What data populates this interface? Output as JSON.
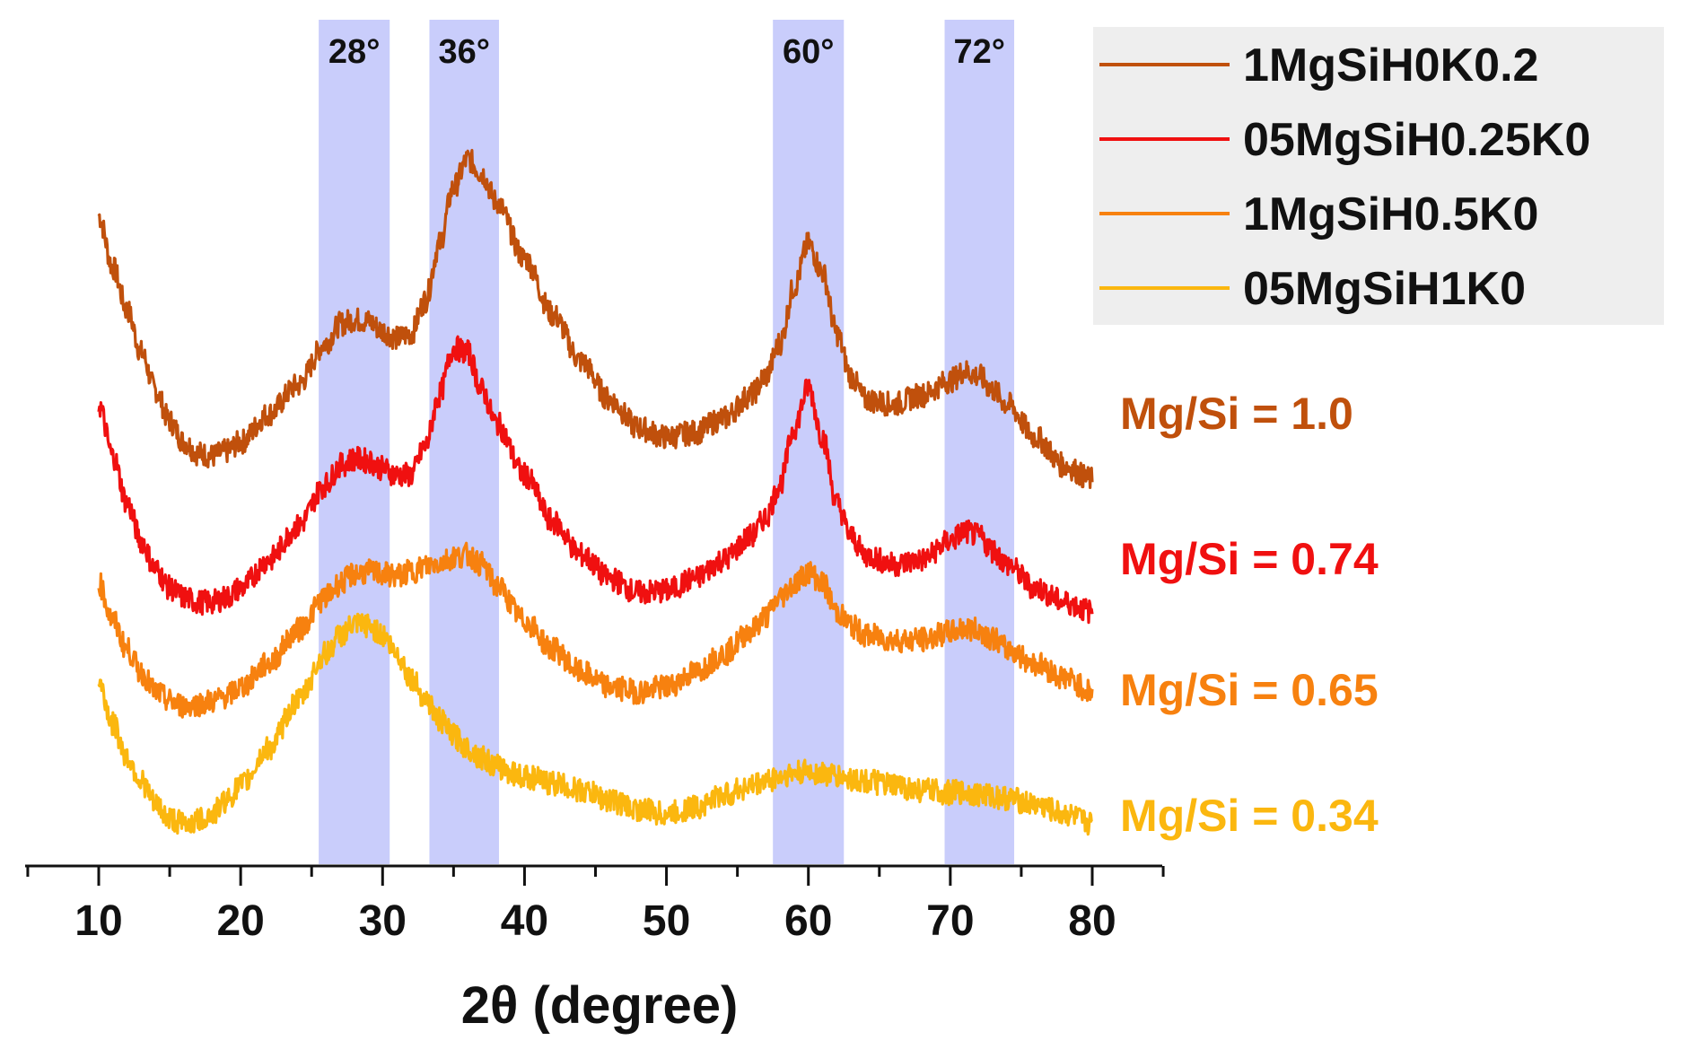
{
  "chart_data": {
    "type": "line",
    "title": "",
    "xlabel": "2θ (degree)",
    "ylabel": "",
    "xlim": [
      5,
      85
    ],
    "ylim": [
      0,
      9
    ],
    "x_ticks": [
      10,
      20,
      30,
      40,
      50,
      60,
      70,
      80
    ],
    "x_tick_labels": [
      "10",
      "20",
      "30",
      "40",
      "50",
      "60",
      "70",
      "80"
    ],
    "grid": false,
    "legend_position": "top-right",
    "highlight_bands": [
      {
        "label": "28°",
        "range": [
          25.5,
          30.5
        ],
        "color": "#c9cdfb"
      },
      {
        "label": "36°",
        "range": [
          33.3,
          38.2
        ],
        "color": "#c9cdfb"
      },
      {
        "label": "60°",
        "range": [
          57.5,
          62.5
        ],
        "color": "#c9cdfb"
      },
      {
        "label": "72°",
        "range": [
          69.6,
          74.5
        ],
        "color": "#c9cdfb"
      }
    ],
    "series": [
      {
        "name": "1MgSiH0K0.2",
        "annotation": "Mg/Si = 1.0",
        "color": "#c0500c",
        "x": [
          10,
          11,
          12,
          13,
          14,
          15,
          16,
          17,
          18,
          19,
          20,
          22,
          24,
          26,
          27,
          28,
          29,
          30,
          31,
          32,
          33,
          34,
          35,
          36,
          37,
          38,
          40,
          42,
          44,
          46,
          48,
          50,
          52,
          54,
          56,
          57,
          58,
          59,
          60,
          61,
          62,
          63,
          64,
          66,
          68,
          70,
          71,
          72,
          73,
          74,
          76,
          78,
          80
        ],
        "y": [
          6.9,
          6.35,
          5.9,
          5.45,
          5.05,
          4.72,
          4.5,
          4.38,
          4.35,
          4.4,
          4.5,
          4.8,
          5.1,
          5.55,
          5.75,
          5.8,
          5.78,
          5.68,
          5.6,
          5.65,
          6.0,
          6.6,
          7.2,
          7.5,
          7.35,
          7.05,
          6.45,
          5.85,
          5.35,
          4.95,
          4.65,
          4.55,
          4.6,
          4.75,
          5.0,
          5.2,
          5.55,
          6.15,
          6.6,
          6.3,
          5.65,
          5.2,
          4.95,
          4.9,
          5.0,
          5.15,
          5.25,
          5.2,
          5.05,
          4.9,
          4.55,
          4.25,
          4.1
        ]
      },
      {
        "name": "05MgSiH0.25K0",
        "annotation": "Mg/Si = 0.74",
        "color": "#f01010",
        "x": [
          10,
          11,
          12,
          13,
          14,
          15,
          16,
          17,
          18,
          19,
          20,
          22,
          24,
          26,
          27,
          28,
          29,
          30,
          31,
          32,
          33,
          34,
          35,
          36,
          37,
          38,
          40,
          42,
          44,
          46,
          48,
          50,
          52,
          54,
          56,
          57,
          58,
          59,
          60,
          61,
          62,
          63,
          64,
          66,
          68,
          70,
          71,
          72,
          73,
          74,
          76,
          78,
          80
        ],
        "y": [
          4.9,
          4.35,
          3.85,
          3.45,
          3.15,
          2.95,
          2.85,
          2.8,
          2.8,
          2.85,
          2.95,
          3.25,
          3.6,
          4.05,
          4.25,
          4.32,
          4.3,
          4.22,
          4.15,
          4.15,
          4.45,
          5.0,
          5.5,
          5.45,
          5.05,
          4.7,
          4.15,
          3.65,
          3.3,
          3.05,
          2.9,
          2.92,
          3.05,
          3.25,
          3.5,
          3.7,
          4.05,
          4.65,
          5.08,
          4.55,
          3.85,
          3.5,
          3.3,
          3.2,
          3.25,
          3.45,
          3.55,
          3.5,
          3.35,
          3.2,
          2.95,
          2.8,
          2.7
        ]
      },
      {
        "name": "1MgSiH0.5K0",
        "annotation": "Mg/Si = 0.65",
        "color": "#f7810f",
        "x": [
          10,
          11,
          12,
          13,
          14,
          15,
          16,
          17,
          18,
          19,
          20,
          22,
          24,
          26,
          27,
          28,
          29,
          30,
          31,
          32,
          33,
          34,
          35,
          36,
          37,
          38,
          40,
          42,
          44,
          46,
          48,
          50,
          52,
          54,
          56,
          57,
          58,
          59,
          60,
          61,
          62,
          63,
          64,
          66,
          68,
          70,
          71,
          72,
          73,
          74,
          76,
          78,
          80
        ],
        "y": [
          3.0,
          2.6,
          2.3,
          2.05,
          1.85,
          1.75,
          1.7,
          1.72,
          1.75,
          1.8,
          1.9,
          2.15,
          2.5,
          2.85,
          3.0,
          3.1,
          3.12,
          3.1,
          3.08,
          3.12,
          3.18,
          3.22,
          3.28,
          3.3,
          3.2,
          2.98,
          2.6,
          2.3,
          2.05,
          1.9,
          1.85,
          1.9,
          2.05,
          2.25,
          2.5,
          2.65,
          2.85,
          3.0,
          3.12,
          3.0,
          2.7,
          2.55,
          2.45,
          2.4,
          2.4,
          2.48,
          2.52,
          2.5,
          2.42,
          2.3,
          2.15,
          2.0,
          1.85
        ]
      },
      {
        "name": "05MgSiH1K0",
        "annotation": "Mg/Si = 0.34",
        "color": "#fbb70f",
        "x": [
          10,
          11,
          12,
          13,
          14,
          15,
          16,
          17,
          18,
          19,
          20,
          22,
          24,
          26,
          27,
          28,
          29,
          30,
          31,
          32,
          33,
          34,
          35,
          36,
          37,
          38,
          40,
          42,
          44,
          46,
          48,
          50,
          52,
          54,
          56,
          57,
          58,
          59,
          60,
          61,
          62,
          63,
          64,
          66,
          68,
          70,
          71,
          72,
          73,
          74,
          76,
          78,
          80
        ],
        "y": [
          1.95,
          1.5,
          1.15,
          0.9,
          0.65,
          0.5,
          0.45,
          0.48,
          0.55,
          0.7,
          0.85,
          1.25,
          1.75,
          2.25,
          2.45,
          2.55,
          2.55,
          2.45,
          2.25,
          2.0,
          1.78,
          1.55,
          1.38,
          1.25,
          1.15,
          1.05,
          0.95,
          0.88,
          0.8,
          0.7,
          0.6,
          0.55,
          0.62,
          0.75,
          0.85,
          0.9,
          0.95,
          0.98,
          1.0,
          0.98,
          0.95,
          0.92,
          0.9,
          0.85,
          0.8,
          0.78,
          0.78,
          0.76,
          0.74,
          0.72,
          0.65,
          0.55,
          0.45
        ]
      }
    ]
  }
}
